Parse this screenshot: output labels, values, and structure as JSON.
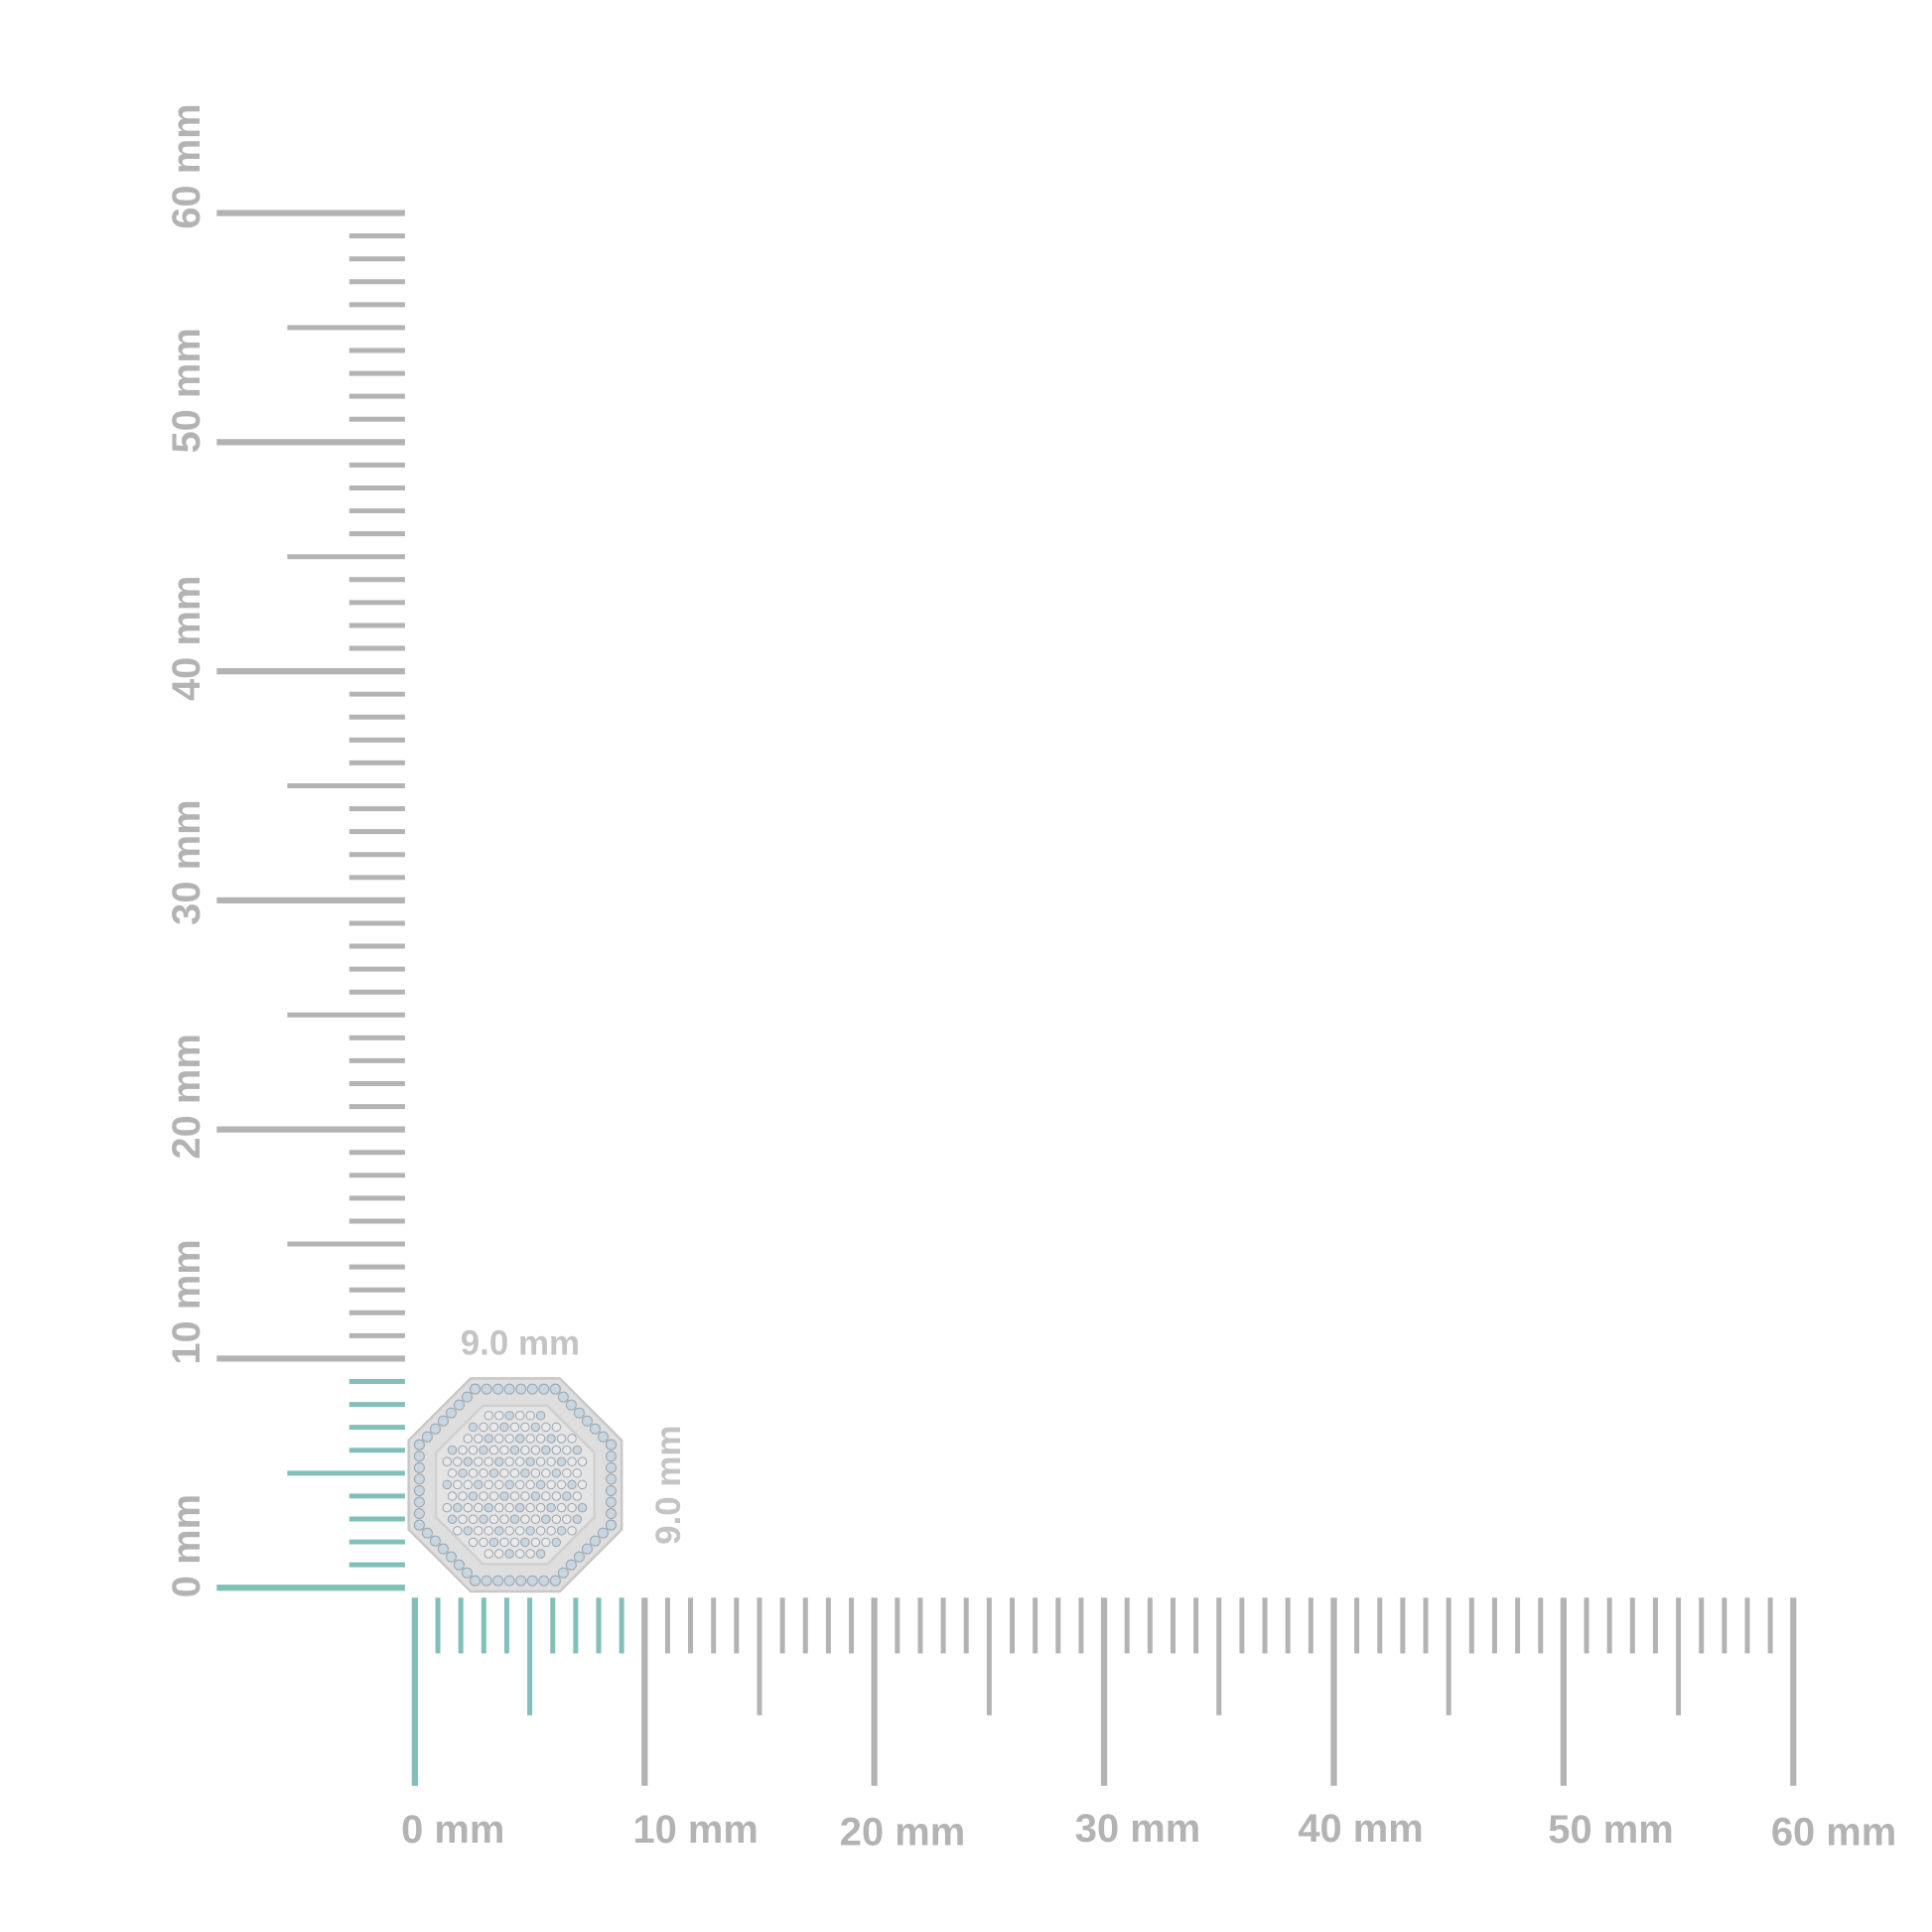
{
  "colors": {
    "ruler": "#b3b3b3",
    "highlight": "#80c0b9",
    "item_metal": "#dedede",
    "item_stone": "#c9d6e0"
  },
  "vertical_ruler": {
    "range_mm": [
      0,
      60
    ],
    "labels": [
      "0 mm",
      "10 mm",
      "20 mm",
      "30 mm",
      "40 mm",
      "50 mm",
      "60 mm"
    ],
    "highlight_mm": 9
  },
  "horizontal_ruler": {
    "range_mm": [
      0,
      60
    ],
    "labels": [
      "0 mm",
      "10 mm",
      "20 mm",
      "30 mm",
      "40 mm",
      "50 mm",
      "60 mm"
    ],
    "highlight_mm": 9
  },
  "item": {
    "shape": "octagon",
    "width_label": "9.0 mm",
    "height_label": "9.0 mm"
  }
}
